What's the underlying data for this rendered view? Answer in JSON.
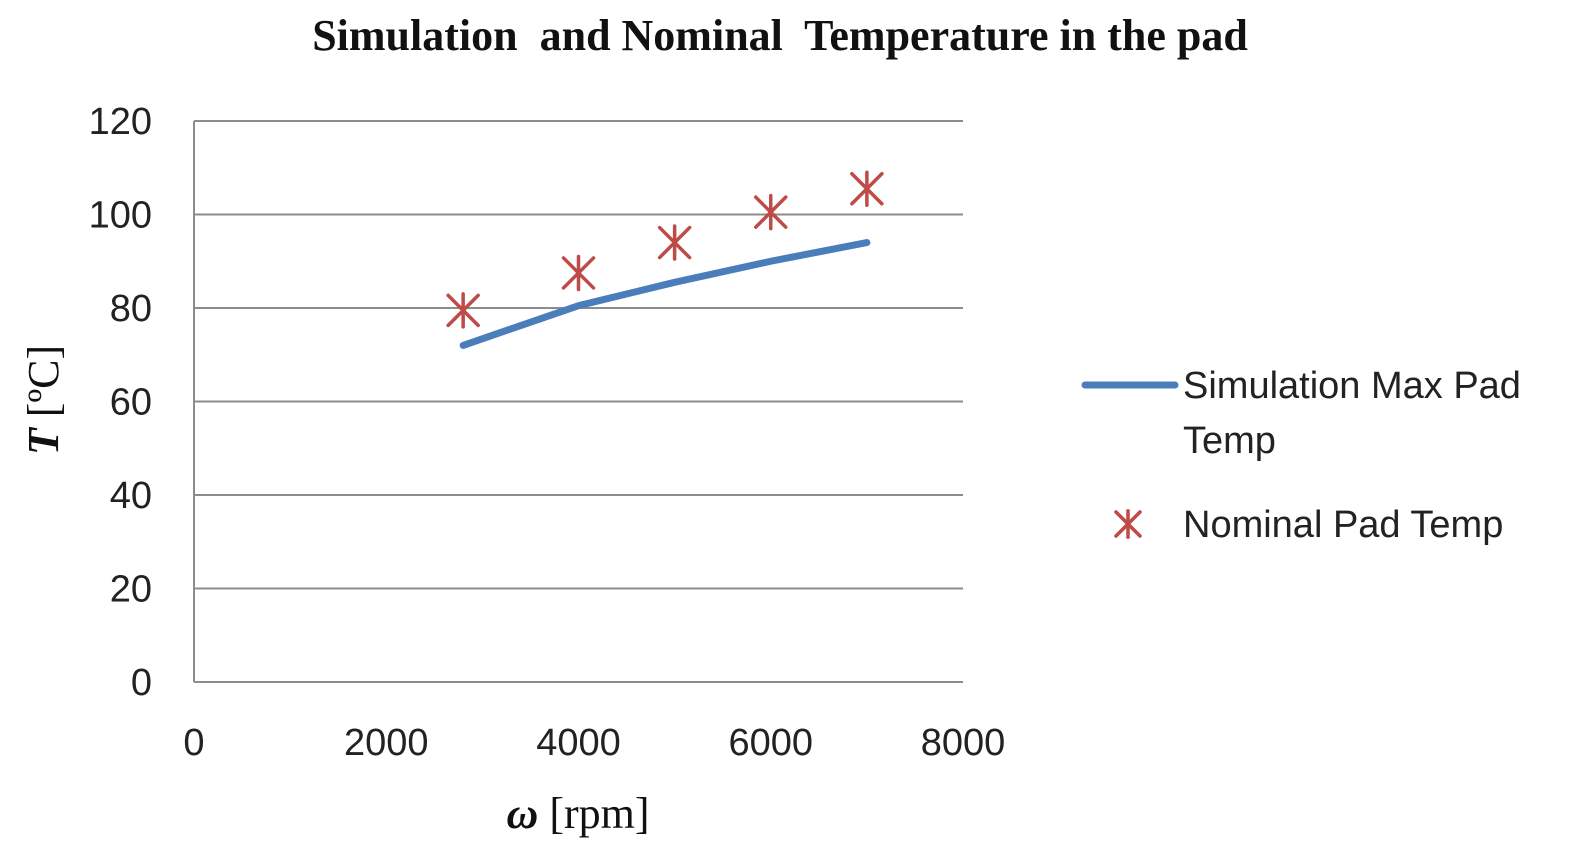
{
  "chart_data": {
    "type": "line+scatter",
    "title": "Simulation  and Nominal  Temperature in the pad",
    "xlabel": {
      "symbol": "ω",
      "unit": " [rpm]"
    },
    "ylabel": {
      "symbol": "T",
      "unit": " [ºC]"
    },
    "xlim": [
      0,
      8000
    ],
    "ylim": [
      0,
      120
    ],
    "xticks": [
      0,
      2000,
      4000,
      6000,
      8000
    ],
    "yticks": [
      0,
      20,
      40,
      60,
      80,
      100,
      120
    ],
    "grid": "horizontal",
    "legend_position": "right",
    "series": [
      {
        "name": "Simulation Max Pad Temp",
        "legend_lines": [
          "Simulation Max Pad",
          "Temp"
        ],
        "kind": "line",
        "color": "#4a7ebb",
        "x": [
          2800,
          4000,
          5000,
          6000,
          7000
        ],
        "y": [
          72,
          80.5,
          85.5,
          90,
          94
        ]
      },
      {
        "name": "Nominal Pad Temp",
        "legend_lines": [
          "Nominal Pad Temp"
        ],
        "kind": "scatter",
        "marker": "asterisk",
        "color": "#be4b48",
        "x": [
          2800,
          4000,
          5000,
          6000,
          7000
        ],
        "y": [
          79.5,
          87.5,
          94,
          100.5,
          105.5
        ]
      }
    ]
  }
}
